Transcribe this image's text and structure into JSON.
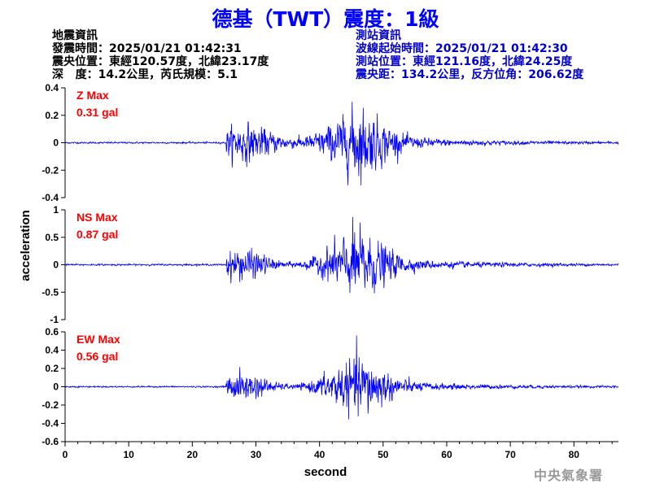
{
  "header": {
    "title": "德基（TWT）震度：1級"
  },
  "earthquake_info": {
    "heading": "地震資訊",
    "origin_time": "發震時間：2025/01/21 01:42:31",
    "epicenter": "震央位置：東經120.57度，北緯23.17度",
    "depth_magnitude": "深   度：14.2公里，芮氏規模：5.1"
  },
  "station_info": {
    "heading": "測站資訊",
    "wave_start": "波線起始時間：2025/01/21 01:42:30",
    "station_location": "測站位置：東經121.16度，北緯24.25度",
    "distance_azimuth": "震央距：134.2公里，反方位角：206.62度"
  },
  "watermark": "中央氣象署",
  "colors": {
    "title": "#0000ff",
    "trace": "#0000ff",
    "max_label": "#ff0000",
    "station_text": "#0000cc"
  },
  "chart_data": {
    "type": "line",
    "xlabel": "second",
    "ylabel": "acceleration",
    "xlim": [
      0,
      87
    ],
    "xticks": [
      0,
      10,
      20,
      30,
      40,
      50,
      60,
      70,
      80
    ],
    "grid": false,
    "panels": [
      {
        "name": "Z",
        "max_title": "Z Max",
        "max_value": "0.31 gal",
        "peak": 0.31,
        "ylim": [
          -0.4,
          0.4
        ],
        "yticks": [
          -0.4,
          -0.2,
          0,
          0.2,
          0.4
        ],
        "ytick_labels": [
          "-0.4",
          "-0.2",
          "0",
          "0.2",
          "0.4"
        ]
      },
      {
        "name": "NS",
        "max_title": "NS Max",
        "max_value": "0.87 gal",
        "peak": 0.87,
        "ylim": [
          -1,
          1
        ],
        "yticks": [
          -1,
          -0.5,
          0,
          0.5,
          1
        ],
        "ytick_labels": [
          "-1",
          "-0.5",
          "0",
          "0.5",
          "1"
        ]
      },
      {
        "name": "EW",
        "max_title": "EW Max",
        "max_value": "0.56 gal",
        "peak": 0.56,
        "ylim": [
          -0.6,
          0.6
        ],
        "yticks": [
          -0.6,
          -0.4,
          -0.2,
          0,
          0.2,
          0.4,
          0.6
        ],
        "ytick_labels": [
          "-0.6",
          "-0.4",
          "-0.2",
          "0",
          "0.2",
          "0.4",
          "0.6"
        ]
      }
    ]
  }
}
